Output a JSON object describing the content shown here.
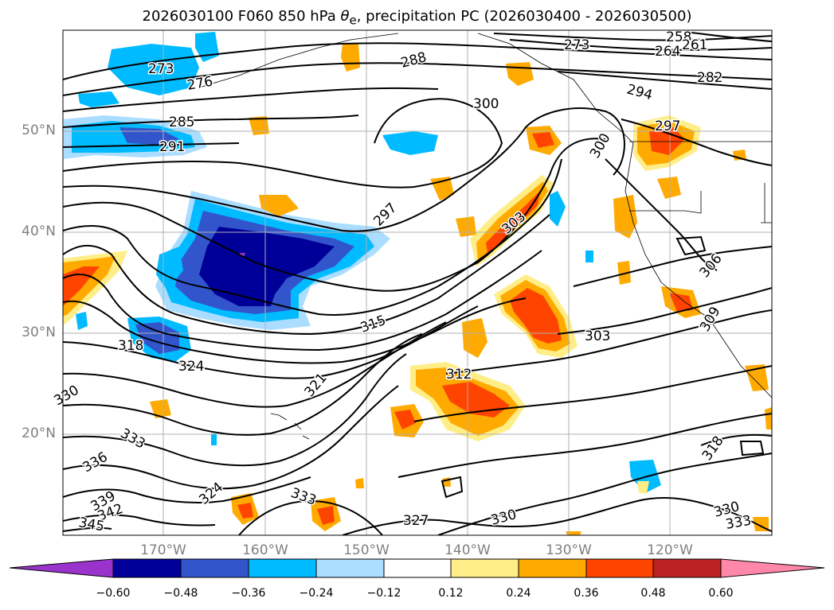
{
  "title_prefix": "2026030100 F060 850 hPa ",
  "title_symbol": "θ",
  "title_subscript": "e",
  "title_suffix": ", precipitation PC (2026030400 - 2026030500)",
  "latitude_labels": [
    "50°N",
    "40°N",
    "30°N",
    "20°N"
  ],
  "longitude_labels": [
    "170°W",
    "160°W",
    "150°W",
    "140°W",
    "130°W",
    "120°W"
  ],
  "colorbar": {
    "ticks": [
      "−0.60",
      "−0.48",
      "−0.36",
      "−0.24",
      "−0.12",
      "0.12",
      "0.24",
      "0.36",
      "0.48",
      "0.60"
    ],
    "colors": [
      "#9933cc",
      "#000099",
      "#3355cc",
      "#00bbff",
      "#aaddff",
      "#ffffff",
      "#ffee88",
      "#ffaa00",
      "#ff4400",
      "#bb2222",
      "#ff88aa"
    ]
  },
  "contour_labels": [
    {
      "text": "273"
    },
    {
      "text": "276"
    },
    {
      "text": "285"
    },
    {
      "text": "291"
    },
    {
      "text": "288"
    },
    {
      "text": "273"
    },
    {
      "text": "264"
    },
    {
      "text": "258"
    },
    {
      "text": "261"
    },
    {
      "text": "282"
    },
    {
      "text": "294"
    },
    {
      "text": "300"
    },
    {
      "text": "297"
    },
    {
      "text": "300"
    },
    {
      "text": "297"
    },
    {
      "text": "303"
    },
    {
      "text": "306"
    },
    {
      "text": "309"
    },
    {
      "text": "303"
    },
    {
      "text": "312"
    },
    {
      "text": "315"
    },
    {
      "text": "318"
    },
    {
      "text": "324"
    },
    {
      "text": "321"
    },
    {
      "text": "330"
    },
    {
      "text": "333"
    },
    {
      "text": "336"
    },
    {
      "text": "339"
    },
    {
      "text": "342"
    },
    {
      "text": "345"
    },
    {
      "text": "324"
    },
    {
      "text": "333"
    },
    {
      "text": "327"
    },
    {
      "text": "330"
    },
    {
      "text": "318"
    },
    {
      "text": "330"
    },
    {
      "text": "333"
    }
  ]
}
